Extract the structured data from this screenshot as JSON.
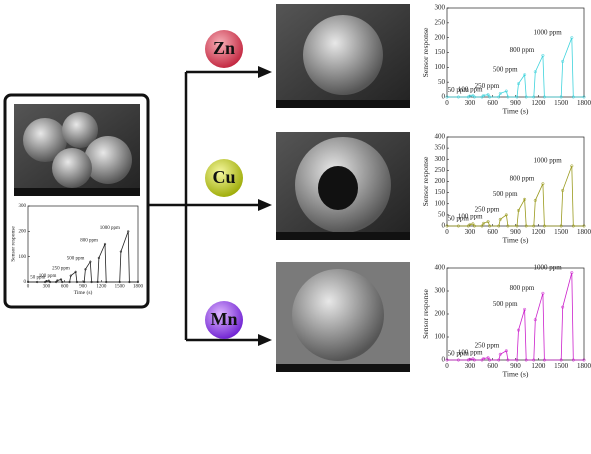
{
  "metals": [
    "Zn",
    "Cu",
    "Mn"
  ],
  "chart_data": [
    {
      "type": "line",
      "xlabel": "Time (s)",
      "ylabel": "Sensor response",
      "x": [
        0,
        150,
        280,
        300,
        340,
        360,
        460,
        480,
        540,
        560,
        680,
        700,
        780,
        800,
        920,
        940,
        1020,
        1040,
        1140,
        1160,
        1260,
        1280,
        1500,
        1520,
        1640,
        1660,
        1800
      ],
      "series": [
        {
          "color": "#222222",
          "values": [
            0,
            0,
            0,
            3,
            5,
            0,
            0,
            6,
            10,
            0,
            0,
            25,
            40,
            0,
            0,
            50,
            80,
            0,
            0,
            95,
            150,
            0,
            0,
            120,
            200,
            0,
            0
          ]
        }
      ],
      "xlim": [
        0,
        1800
      ],
      "ylim": [
        0,
        300
      ],
      "xticks": [
        0,
        300,
        600,
        900,
        1200,
        1500,
        1800
      ],
      "yticks": [
        0,
        100,
        200,
        300
      ],
      "annotations": [
        "50 ppm",
        "100 ppm",
        "250 ppm",
        "500 ppm",
        "800 ppm",
        "1000 ppm"
      ]
    },
    {
      "type": "line",
      "xlabel": "Time (s)",
      "ylabel": "Sensor response",
      "x": [
        0,
        150,
        280,
        300,
        340,
        360,
        460,
        480,
        540,
        560,
        680,
        700,
        780,
        800,
        920,
        940,
        1020,
        1040,
        1140,
        1160,
        1260,
        1280,
        1500,
        1520,
        1640,
        1660,
        1800
      ],
      "series": [
        {
          "color": "#3fd3dc",
          "values": [
            0,
            0,
            0,
            3,
            5,
            0,
            0,
            5,
            8,
            0,
            0,
            12,
            20,
            0,
            0,
            45,
            75,
            0,
            0,
            85,
            140,
            0,
            0,
            120,
            200,
            0,
            0
          ]
        }
      ],
      "xlim": [
        0,
        1800
      ],
      "ylim": [
        0,
        300
      ],
      "xticks": [
        0,
        300,
        600,
        900,
        1200,
        1500,
        1800
      ],
      "yticks": [
        0,
        50,
        100,
        150,
        200,
        250,
        300
      ],
      "annotations": [
        "50 ppm",
        "100 ppm",
        "250 ppm",
        "500 ppm",
        "800 ppm",
        "1000 ppm"
      ]
    },
    {
      "type": "line",
      "xlabel": "Time (s)",
      "ylabel": "Sensor response",
      "x": [
        0,
        150,
        280,
        300,
        340,
        360,
        460,
        480,
        540,
        560,
        680,
        700,
        780,
        800,
        920,
        940,
        1020,
        1040,
        1140,
        1160,
        1260,
        1280,
        1500,
        1520,
        1640,
        1660,
        1800
      ],
      "series": [
        {
          "color": "#9a9a1e",
          "values": [
            0,
            0,
            0,
            6,
            10,
            0,
            0,
            12,
            20,
            0,
            0,
            30,
            50,
            0,
            0,
            70,
            120,
            0,
            0,
            115,
            190,
            0,
            0,
            160,
            270,
            0,
            0
          ]
        }
      ],
      "xlim": [
        0,
        1800
      ],
      "ylim": [
        0,
        400
      ],
      "xticks": [
        0,
        300,
        600,
        900,
        1200,
        1500,
        1800
      ],
      "yticks": [
        0,
        50,
        100,
        150,
        200,
        250,
        300,
        350,
        400
      ],
      "annotations": [
        "50 ppm",
        "100 ppm",
        "250 ppm",
        "500 ppm",
        "800 ppm",
        "1000 ppm"
      ]
    },
    {
      "type": "line",
      "xlabel": "Time (s)",
      "ylabel": "Sensor response",
      "x": [
        0,
        150,
        280,
        300,
        340,
        360,
        460,
        480,
        540,
        560,
        680,
        700,
        780,
        800,
        920,
        940,
        1020,
        1040,
        1140,
        1160,
        1260,
        1280,
        1500,
        1520,
        1640,
        1660,
        1800
      ],
      "series": [
        {
          "color": "#cc22cc",
          "values": [
            0,
            0,
            0,
            3,
            5,
            0,
            0,
            6,
            10,
            0,
            0,
            25,
            40,
            0,
            0,
            130,
            220,
            0,
            0,
            175,
            290,
            0,
            0,
            230,
            380,
            0,
            0
          ]
        }
      ],
      "xlim": [
        0,
        1800
      ],
      "ylim": [
        0,
        400
      ],
      "xticks": [
        0,
        300,
        600,
        900,
        1200,
        1500,
        1800
      ],
      "yticks": [
        0,
        100,
        200,
        300,
        400
      ],
      "annotations": [
        "50 ppm",
        "100 ppm",
        "250 ppm",
        "500 ppm",
        "800 ppm",
        "1000 ppm"
      ]
    }
  ]
}
